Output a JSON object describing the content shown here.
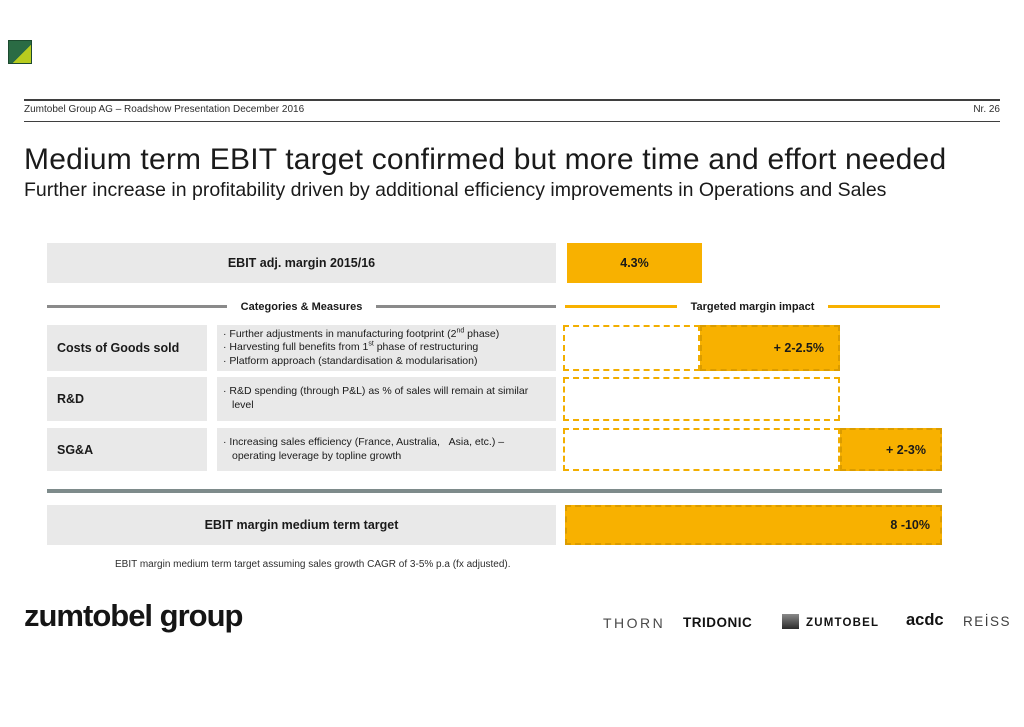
{
  "header": {
    "left": "Zumtobel Group AG – Roadshow Presentation December 2016",
    "right": "Nr. 26"
  },
  "title": "Medium term EBIT target confirmed but more time and effort needed",
  "subtitle": "Further increase in profitability driven by additional efficiency improvements in Operations and Sales",
  "diagram": {
    "top_row": {
      "label": "EBIT adj. margin 2015/16",
      "value": "4.3%"
    },
    "col_headers": {
      "left": "Categories & Measures",
      "right": "Targeted margin impact"
    },
    "rows": [
      {
        "category": "Costs of Goods sold",
        "measures": [
          "Further adjustments in manufacturing footprint (2<sup>nd</sup> phase)",
          "Harvesting full benefits from 1<sup>st</sup> phase of restructuring",
          "Platform approach (standardisation &amp; modularisation)"
        ],
        "impact": "+ 2-2.5%"
      },
      {
        "category": "R&D",
        "measures": [
          "R&amp;D spending (through P&amp;L) as % of sales will remain at similar level"
        ],
        "impact": ""
      },
      {
        "category": "SG&A",
        "measures": [
          "Increasing sales efficiency (France, Australia,&nbsp;&nbsp;&nbsp;Asia, etc.) – operating leverage by topline growth"
        ],
        "impact": "+ 2-3%"
      }
    ],
    "bottom_row": {
      "label": "EBIT margin medium term target",
      "value": "8 -10%"
    },
    "footnote": "EBIT margin medium term target assuming sales growth CAGR of 3-5% p.a (fx adjusted)."
  },
  "footer": {
    "group_logo": "zumtobel group",
    "brands": [
      "THORN",
      "TRIDONIC",
      "ZUMTOBEL",
      "acdc",
      "REİSS"
    ]
  },
  "colors": {
    "accent_yellow": "#F8B100",
    "box_gray": "#E9E9E9",
    "separator_gray": "#7E8B8B"
  }
}
